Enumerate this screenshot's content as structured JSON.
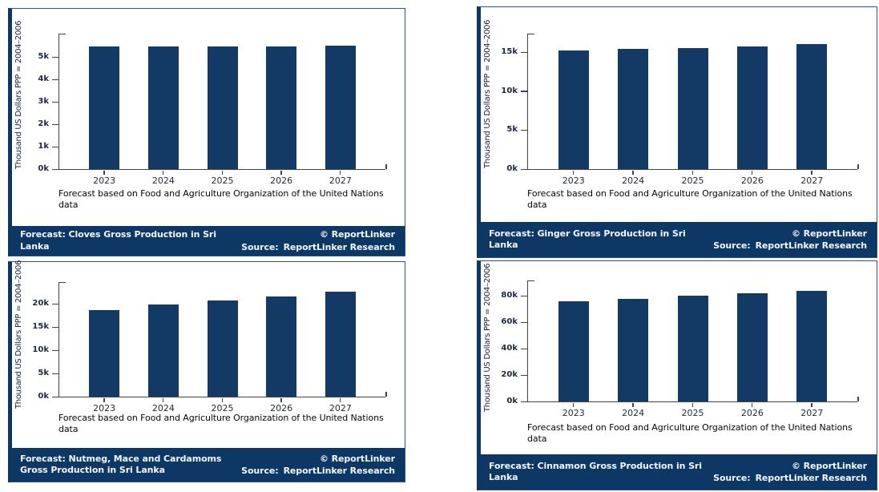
{
  "branding": {
    "copyright": "© ReportLinker",
    "source_label": "Source:",
    "source_value": "ReportLinker Research"
  },
  "shared": {
    "ylabel": "Thousand US Dollars PPP = 2004–2006",
    "caption": "Forecast based on Food and Agriculture Organization of the United Nations data",
    "years": [
      "2023",
      "2024",
      "2025",
      "2026",
      "2027"
    ]
  },
  "colors": {
    "bar": "#123A65",
    "footer_bg": "#0D3765",
    "panel_border": "#2A5282",
    "axis": "#3E444E",
    "footer_text": "#F4F7FB"
  },
  "chart_data": [
    {
      "type": "bar",
      "title": "Forecast: Cloves Gross Production in Sri Lanka",
      "categories": [
        "2023",
        "2024",
        "2025",
        "2026",
        "2027"
      ],
      "values": [
        5.45,
        5.46,
        5.47,
        5.48,
        5.5
      ],
      "values_unit": "k (thousand US Dollars PPP = 2004–2006)",
      "ylabel": "Thousand US Dollars PPP = 2004–2006",
      "xlabel": "",
      "ytick_labels": [
        "0k",
        "1k",
        "2k",
        "3k",
        "4k",
        "5k"
      ],
      "ytick_values": [
        0,
        1,
        2,
        3,
        4,
        5
      ],
      "ylim": [
        0,
        6.0
      ],
      "grid": "off",
      "legend": "none",
      "caption": "Forecast based on Food and Agriculture Organization of the United Nations data"
    },
    {
      "type": "bar",
      "title": "Forecast: Nutmeg, Mace and Cardamoms Gross Production in Sri Lanka",
      "categories": [
        "2023",
        "2024",
        "2025",
        "2026",
        "2027"
      ],
      "values": [
        18.7,
        19.8,
        20.7,
        21.6,
        22.6
      ],
      "values_unit": "k (thousand US Dollars PPP = 2004–2006)",
      "ylabel": "Thousand US Dollars PPP = 2004–2006",
      "xlabel": "",
      "ytick_labels": [
        "0k",
        "5k",
        "10k",
        "15k",
        "20k"
      ],
      "ytick_values": [
        0,
        5,
        10,
        15,
        20
      ],
      "ylim": [
        0,
        24.5
      ],
      "grid": "off",
      "legend": "none",
      "caption": "Forecast based on Food and Agriculture Organization of the United Nations data"
    },
    {
      "type": "bar",
      "title": "Forecast: Ginger Gross Production in Sri Lanka",
      "categories": [
        "2023",
        "2024",
        "2025",
        "2026",
        "2027"
      ],
      "values": [
        15.2,
        15.4,
        15.6,
        15.8,
        16.1
      ],
      "values_unit": "k (thousand US Dollars PPP = 2004–2006)",
      "ylabel": "Thousand US Dollars PPP = 2004–2006",
      "xlabel": "",
      "ytick_labels": [
        "0k",
        "5k",
        "10k",
        "15k"
      ],
      "ytick_values": [
        0,
        5,
        10,
        15
      ],
      "ylim": [
        0,
        17.3
      ],
      "grid": "off",
      "legend": "none",
      "caption": "Forecast based on Food and Agriculture Organization of the United Nations data"
    },
    {
      "type": "bar",
      "title": "Forecast: Cinnamon Gross Production in Sri Lanka",
      "categories": [
        "2023",
        "2024",
        "2025",
        "2026",
        "2027"
      ],
      "values": [
        75.8,
        77.7,
        79.9,
        81.9,
        84.0
      ],
      "values_unit": "k (thousand US Dollars PPP = 2004–2006)",
      "ylabel": "Thousand US Dollars PPP = 2004–2006",
      "xlabel": "",
      "ytick_labels": [
        "0k",
        "20k",
        "40k",
        "60k",
        "80k"
      ],
      "ytick_values": [
        0,
        20,
        40,
        60,
        80
      ],
      "ylim": [
        0,
        91
      ],
      "grid": "off",
      "legend": "none",
      "caption": "Forecast based on Food and Agriculture Organization of the United Nations data"
    }
  ]
}
